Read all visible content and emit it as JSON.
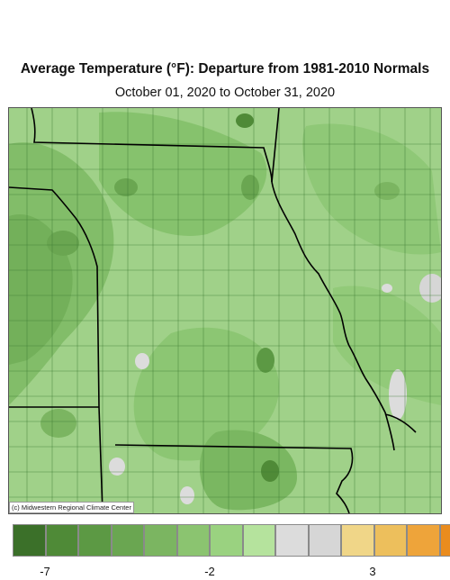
{
  "map": {
    "title": "Average Temperature (°F): Departure from 1981-2010 Normals",
    "subtitle": "October 01, 2020 to October 31, 2020",
    "credit": "(c) Midwestern Regional Climate Center"
  },
  "legend": {
    "colors": [
      "#3b7029",
      "#4f8a37",
      "#5c9944",
      "#6aa651",
      "#7bb561",
      "#8bc470",
      "#9ad280",
      "#b5e39d",
      "#dcdcdc",
      "#d6d6d6",
      "#f0d688",
      "#edbf5c",
      "#eea43a",
      "#ea8c1e"
    ],
    "labels": [
      "-7",
      "-2",
      "3"
    ]
  }
}
